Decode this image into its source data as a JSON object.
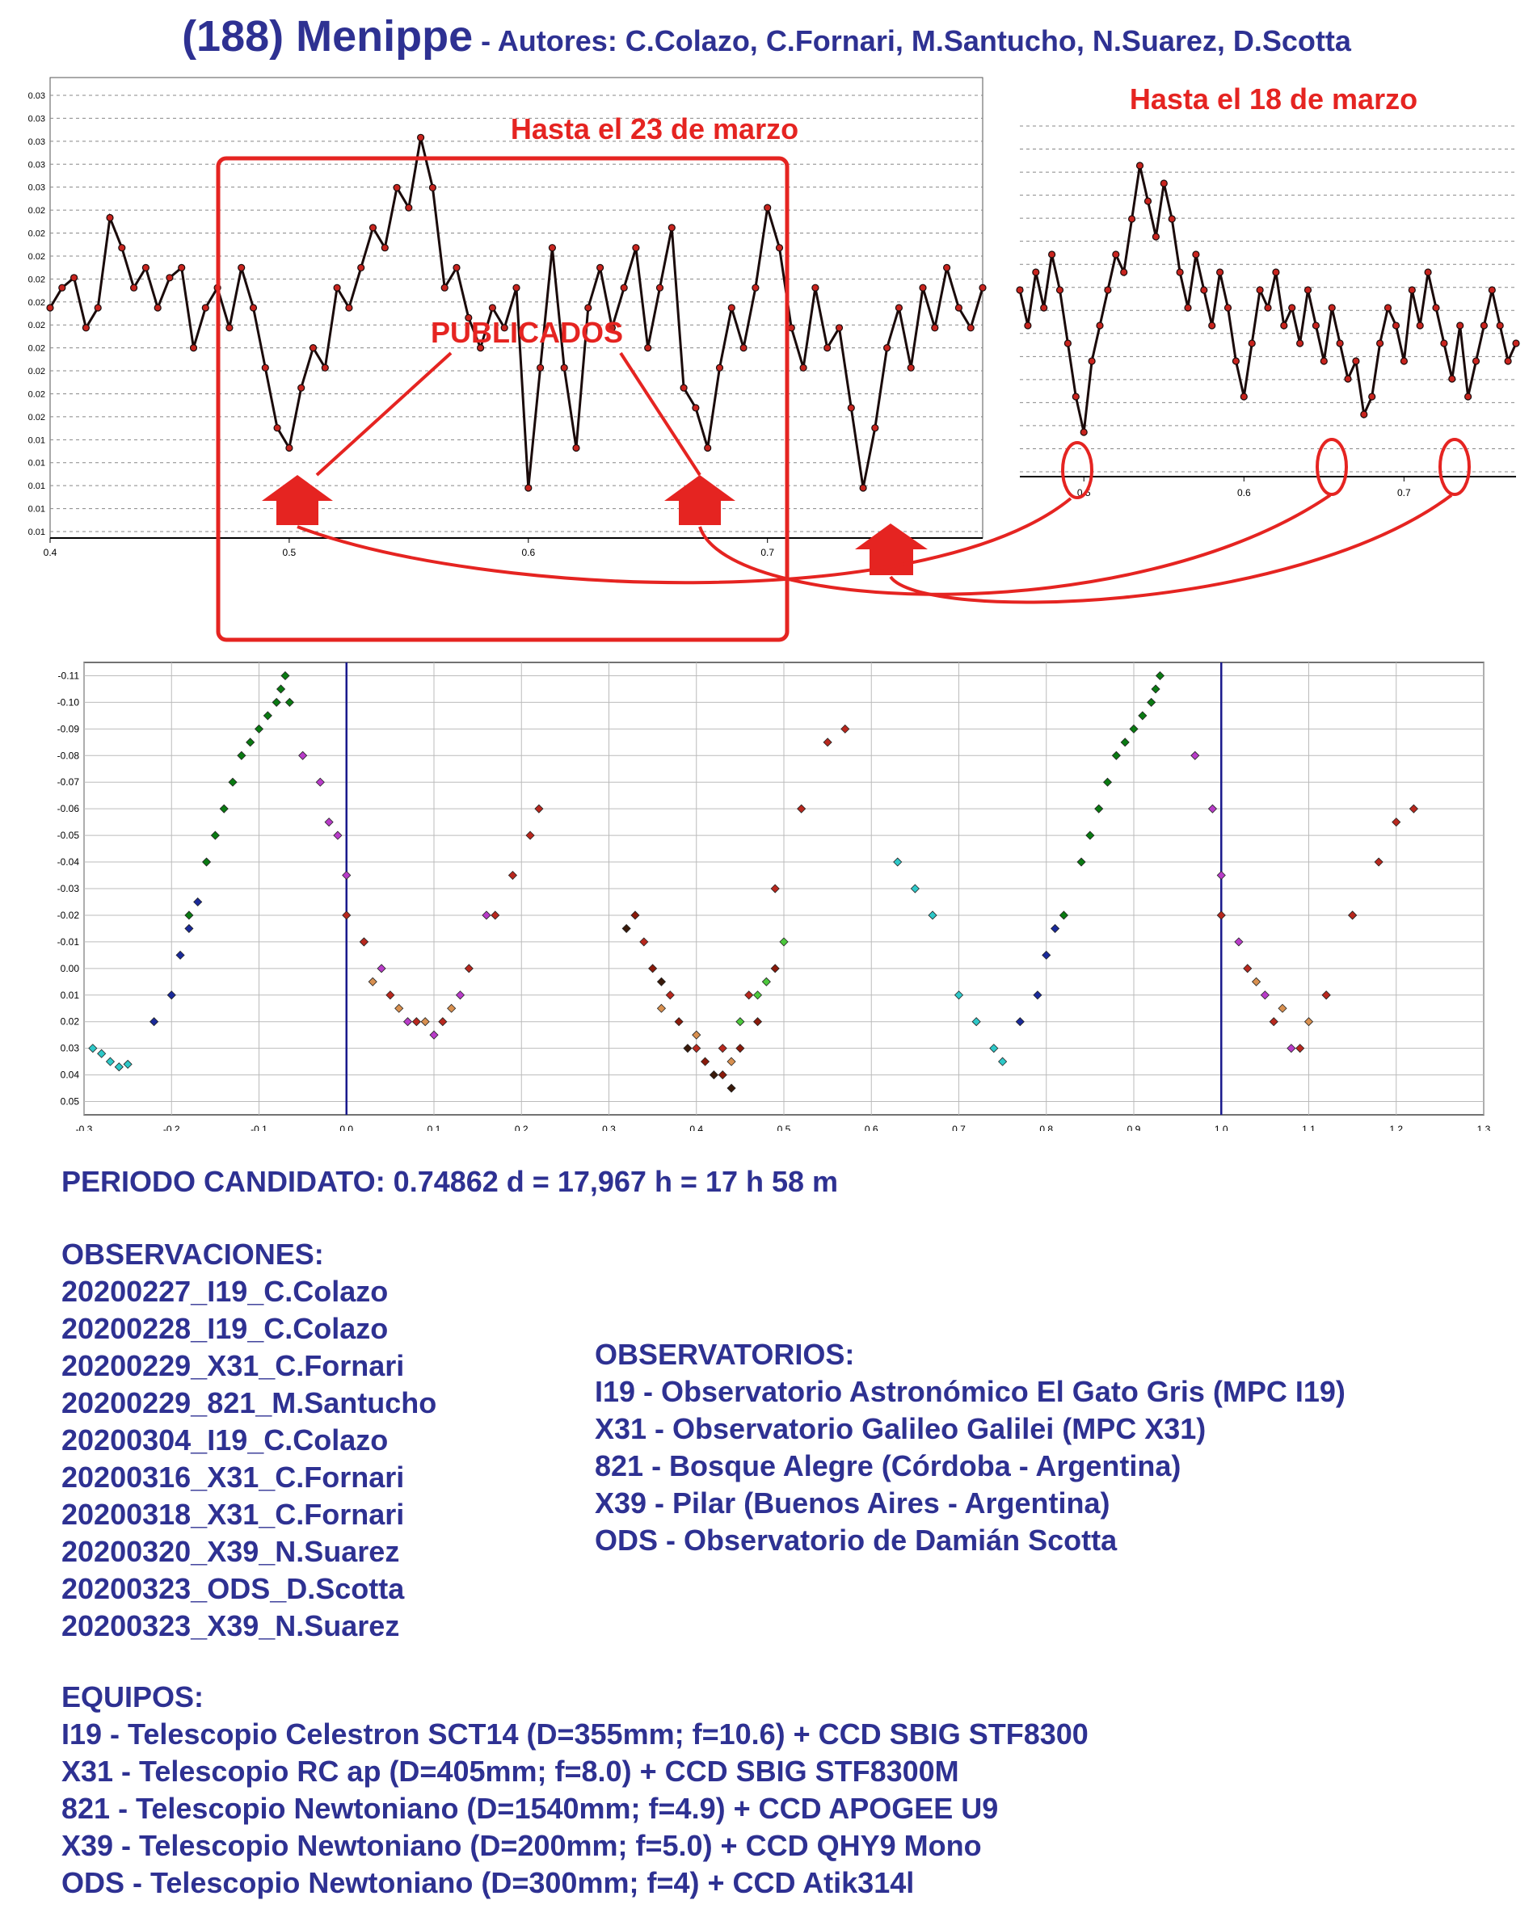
{
  "header": {
    "title": "(188) Menippe",
    "authors": " - Autores: C.Colazo, C.Fornari, M.Santucho, N.Suarez, D.Scotta"
  },
  "colors": {
    "navy": "#2e3192",
    "red": "#e52421",
    "marker_dark": "#1a0a0a",
    "marker_red": "#c8241e",
    "series": [
      "#0a7a12",
      "#1a2a9a",
      "#2ec8c8",
      "#b83cc8",
      "#b8281e",
      "#d89050",
      "#8a1a0a",
      "#3a1a0a",
      "#4cc83c"
    ]
  },
  "annotations": {
    "hasta_23": "Hasta el 23 de marzo",
    "hasta_18": "Hasta el 18 de marzo",
    "publicados": "PUBLICADOS"
  },
  "chart_data": [
    {
      "type": "scatter",
      "title": "",
      "description_of_marks": "dense lightcurve, red markers with black outlines",
      "xlim": [
        0.4,
        0.79
      ],
      "x_ticks": [
        "0.4",
        "0.5",
        "0.6",
        "0.7"
      ],
      "y_ticks": [
        "0.03",
        "0.03",
        "0.03",
        "0.03",
        "0.03",
        "0.02",
        "0.02",
        "0.02",
        "0.02",
        "0.02",
        "0.02",
        "0.02",
        "0.02",
        "0.02",
        "0.02",
        "0.01",
        "0.01",
        "0.01",
        "0.01",
        "0.01"
      ],
      "grid": "horizontal dashed",
      "series": [
        {
          "x": [
            0.4,
            0.405,
            0.41,
            0.415,
            0.42,
            0.425,
            0.43,
            0.435,
            0.44,
            0.445,
            0.45,
            0.455,
            0.46,
            0.465,
            0.47,
            0.475,
            0.48,
            0.485,
            0.49,
            0.495,
            0.5,
            0.505,
            0.51,
            0.515,
            0.52,
            0.525,
            0.53,
            0.535,
            0.54,
            0.545,
            0.55,
            0.555,
            0.56,
            0.565,
            0.57,
            0.575,
            0.58,
            0.585,
            0.59,
            0.595,
            0.6,
            0.605,
            0.61,
            0.615,
            0.62,
            0.625,
            0.63,
            0.635,
            0.64,
            0.645,
            0.65,
            0.655,
            0.66,
            0.665,
            0.67,
            0.675,
            0.68,
            0.685,
            0.69,
            0.695,
            0.7,
            0.705,
            0.71,
            0.715,
            0.72,
            0.725,
            0.73,
            0.735,
            0.74,
            0.745,
            0.75,
            0.755,
            0.76,
            0.765,
            0.77,
            0.775,
            0.78,
            0.785,
            0.79
          ],
          "y": [
            0.0195,
            0.0205,
            0.021,
            0.0185,
            0.0195,
            0.024,
            0.0225,
            0.0205,
            0.0215,
            0.0195,
            0.021,
            0.0215,
            0.0175,
            0.0195,
            0.0205,
            0.0185,
            0.0215,
            0.0195,
            0.0165,
            0.0135,
            0.0125,
            0.0155,
            0.0175,
            0.0165,
            0.0205,
            0.0195,
            0.0215,
            0.0235,
            0.0225,
            0.0255,
            0.0245,
            0.028,
            0.0255,
            0.0205,
            0.0215,
            0.019,
            0.0175,
            0.0195,
            0.0185,
            0.0205,
            0.0105,
            0.0165,
            0.0225,
            0.0165,
            0.0125,
            0.0195,
            0.0215,
            0.0185,
            0.0205,
            0.0225,
            0.0175,
            0.0205,
            0.0235,
            0.0155,
            0.0145,
            0.0125,
            0.0165,
            0.0195,
            0.0175,
            0.0205,
            0.0245,
            0.0225,
            0.0185,
            0.0165,
            0.0205,
            0.0175,
            0.0185,
            0.0145,
            0.0105,
            0.0135,
            0.0175,
            0.0195,
            0.0165,
            0.0205,
            0.0185,
            0.0215,
            0.0195,
            0.0185,
            0.0205
          ]
        }
      ]
    },
    {
      "type": "scatter",
      "title": "",
      "xlim": [
        0.46,
        0.77
      ],
      "x_ticks": [
        "0.5",
        "0.6",
        "0.7"
      ],
      "grid": "horizontal dashed",
      "series": [
        {
          "x": [
            0.46,
            0.465,
            0.47,
            0.475,
            0.48,
            0.485,
            0.49,
            0.495,
            0.5,
            0.505,
            0.51,
            0.515,
            0.52,
            0.525,
            0.53,
            0.535,
            0.54,
            0.545,
            0.55,
            0.555,
            0.56,
            0.565,
            0.57,
            0.575,
            0.58,
            0.585,
            0.59,
            0.595,
            0.6,
            0.605,
            0.61,
            0.615,
            0.62,
            0.625,
            0.63,
            0.635,
            0.64,
            0.645,
            0.65,
            0.655,
            0.66,
            0.665,
            0.67,
            0.675,
            0.68,
            0.685,
            0.69,
            0.695,
            0.7,
            0.705,
            0.71,
            0.715,
            0.72,
            0.725,
            0.73,
            0.735,
            0.74,
            0.745,
            0.75,
            0.755,
            0.76,
            0.765,
            0.77
          ],
          "y": [
            0.0205,
            0.0185,
            0.0215,
            0.0195,
            0.0225,
            0.0205,
            0.0175,
            0.0145,
            0.0125,
            0.0165,
            0.0185,
            0.0205,
            0.0225,
            0.0215,
            0.0245,
            0.0275,
            0.0255,
            0.0235,
            0.0265,
            0.0245,
            0.0215,
            0.0195,
            0.0225,
            0.0205,
            0.0185,
            0.0215,
            0.0195,
            0.0165,
            0.0145,
            0.0175,
            0.0205,
            0.0195,
            0.0215,
            0.0185,
            0.0195,
            0.0175,
            0.0205,
            0.0185,
            0.0165,
            0.0195,
            0.0175,
            0.0155,
            0.0165,
            0.0135,
            0.0145,
            0.0175,
            0.0195,
            0.0185,
            0.0165,
            0.0205,
            0.0185,
            0.0215,
            0.0195,
            0.0175,
            0.0155,
            0.0185,
            0.0145,
            0.0165,
            0.0185,
            0.0205,
            0.0185,
            0.0165,
            0.0175
          ]
        }
      ]
    },
    {
      "type": "scatter",
      "title": "",
      "xlim": [
        -0.3,
        1.3
      ],
      "ylim": [
        0.055,
        -0.115
      ],
      "y_inverted": true,
      "x_ticks": [
        "-0.3",
        "-0.2",
        "-0.1",
        "0.0",
        "0.1",
        "0.2",
        "0.3",
        "0.4",
        "0.5",
        "0.6",
        "0.7",
        "0.8",
        "0.9",
        "1.0",
        "1.1",
        "1.2",
        "1.3"
      ],
      "y_ticks": [
        "-0.11",
        "-0.10",
        "-0.09",
        "-0.08",
        "-0.07",
        "-0.06",
        "-0.05",
        "-0.04",
        "-0.03",
        "-0.02",
        "-0.01",
        "0.00",
        "0.01",
        "0.02",
        "0.03",
        "0.04",
        "0.05"
      ],
      "grid": "solid both",
      "vertical_lines_x": [
        0.0,
        1.0
      ],
      "series": [
        {
          "color_index": 0,
          "x": [
            -0.18,
            -0.16,
            -0.15,
            -0.14,
            -0.13,
            -0.12,
            -0.11,
            -0.1,
            -0.09,
            -0.08,
            -0.075,
            -0.07,
            -0.065,
            0.82,
            0.84,
            0.85,
            0.86,
            0.87,
            0.88,
            0.89,
            0.9,
            0.91,
            0.92,
            0.925,
            0.93
          ],
          "y": [
            -0.02,
            -0.04,
            -0.05,
            -0.06,
            -0.07,
            -0.08,
            -0.085,
            -0.09,
            -0.095,
            -0.1,
            -0.105,
            -0.11,
            -0.1,
            -0.02,
            -0.04,
            -0.05,
            -0.06,
            -0.07,
            -0.08,
            -0.085,
            -0.09,
            -0.095,
            -0.1,
            -0.105,
            -0.11
          ]
        },
        {
          "color_index": 1,
          "x": [
            -0.22,
            -0.2,
            -0.19,
            -0.18,
            -0.17,
            0.77,
            0.79,
            0.8,
            0.81
          ],
          "y": [
            0.02,
            0.01,
            -0.005,
            -0.015,
            -0.025,
            0.02,
            0.01,
            -0.005,
            -0.015
          ]
        },
        {
          "color_index": 2,
          "x": [
            -0.29,
            -0.28,
            -0.27,
            -0.26,
            -0.25,
            0.63,
            0.65,
            0.67,
            0.7,
            0.72,
            0.74,
            0.75
          ],
          "y": [
            0.03,
            0.032,
            0.035,
            0.037,
            0.036,
            -0.04,
            -0.03,
            -0.02,
            0.01,
            0.02,
            0.03,
            0.035
          ]
        },
        {
          "color_index": 3,
          "x": [
            -0.05,
            -0.03,
            -0.02,
            -0.01,
            0.0,
            0.02,
            0.04,
            0.07,
            0.1,
            0.13,
            0.16,
            0.97,
            0.99,
            1.0,
            1.02,
            1.05,
            1.08,
            1.12,
            1.15
          ],
          "y": [
            -0.08,
            -0.07,
            -0.055,
            -0.05,
            -0.035,
            -0.01,
            0.0,
            0.02,
            0.025,
            0.01,
            -0.02,
            -0.08,
            -0.06,
            -0.035,
            -0.01,
            0.01,
            0.03,
            0.01,
            -0.02
          ],
          "marker_stroke": "#222222"
        },
        {
          "color_index": 4,
          "x": [
            0.0,
            0.02,
            0.05,
            0.08,
            0.11,
            0.14,
            0.17,
            0.19,
            0.21,
            0.22,
            0.34,
            0.37,
            0.4,
            0.43,
            0.46,
            0.49,
            0.52,
            0.55,
            0.57,
            1.0,
            1.03,
            1.06,
            1.09,
            1.12,
            1.15,
            1.18,
            1.2,
            1.22
          ],
          "y": [
            -0.02,
            -0.01,
            0.01,
            0.02,
            0.02,
            0.0,
            -0.02,
            -0.035,
            -0.05,
            -0.06,
            -0.01,
            0.01,
            0.03,
            0.03,
            0.01,
            -0.03,
            -0.06,
            -0.085,
            -0.09,
            -0.02,
            0.0,
            0.02,
            0.03,
            0.01,
            -0.02,
            -0.04,
            -0.055,
            -0.06
          ]
        },
        {
          "color_index": 5,
          "x": [
            0.03,
            0.06,
            0.09,
            0.12,
            0.36,
            0.4,
            0.44,
            1.04,
            1.07,
            1.1
          ],
          "y": [
            0.005,
            0.015,
            0.02,
            0.015,
            0.015,
            0.025,
            0.035,
            0.005,
            0.015,
            0.02
          ]
        },
        {
          "color_index": 6,
          "x": [
            0.33,
            0.35,
            0.38,
            0.41,
            0.43,
            0.45,
            0.47,
            0.49
          ],
          "y": [
            -0.02,
            0.0,
            0.02,
            0.035,
            0.04,
            0.03,
            0.02,
            0.0
          ]
        },
        {
          "color_index": 7,
          "x": [
            0.32,
            0.36,
            0.39,
            0.42,
            0.44
          ],
          "y": [
            -0.015,
            0.005,
            0.03,
            0.04,
            0.045
          ]
        },
        {
          "color_index": 8,
          "x": [
            0.45,
            0.47,
            0.48,
            0.5
          ],
          "y": [
            0.02,
            0.01,
            0.005,
            -0.01
          ]
        }
      ]
    }
  ],
  "periodo": "PERIODO CANDIDATO: 0.74862 d = 17,967 h = 17 h 58 m",
  "observaciones": {
    "heading": "OBSERVACIONES:",
    "items": [
      "20200227_I19_C.Colazo",
      "20200228_I19_C.Colazo",
      "20200229_X31_C.Fornari",
      "20200229_821_M.Santucho",
      "20200304_I19_C.Colazo",
      "20200316_X31_C.Fornari",
      "20200318_X31_C.Fornari",
      "20200320_X39_N.Suarez",
      "20200323_ODS_D.Scotta",
      "20200323_X39_N.Suarez"
    ]
  },
  "observatorios": {
    "heading": "OBSERVATORIOS:",
    "items": [
      "I19 - Observatorio Astronómico El Gato Gris (MPC I19)",
      "X31 - Observatorio Galileo Galilei (MPC X31)",
      "821 - Bosque Alegre (Córdoba - Argentina)",
      "X39 - Pilar (Buenos Aires - Argentina)",
      "ODS - Observatorio de Damián Scotta"
    ]
  },
  "equipos": {
    "heading": "EQUIPOS:",
    "items": [
      "I19 - Telescopio Celestron SCT14 (D=355mm; f=10.6) + CCD SBIG STF8300",
      "X31 - Telescopio RC ap (D=405mm; f=8.0) + CCD SBIG STF8300M",
      "821 - Telescopio  Newtoniano (D=1540mm; f=4.9) + CCD APOGEE U9",
      "X39 - Telescopio Newtoniano (D=200mm; f=5.0) + CCD QHY9 Mono",
      "ODS - Telescopio Newtoniano (D=300mm; f=4) + CCD Atik314l"
    ]
  }
}
